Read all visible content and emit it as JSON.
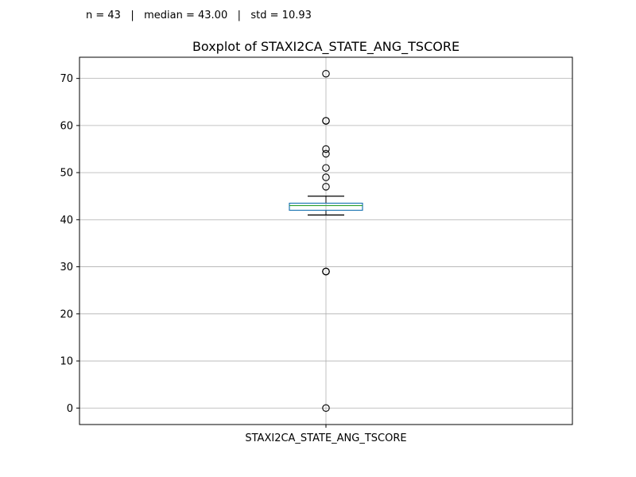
{
  "stats_line": "n = 43   |   median = 43.00   |   std = 10.93",
  "chart_data": {
    "type": "box",
    "title": "Boxplot of STAXI2CA_STATE_ANG_TSCORE",
    "xlabel": "",
    "ylabel": "",
    "categories": [
      "STAXI2CA_STATE_ANG_TSCORE"
    ],
    "ylim": [
      -3.5,
      74.5
    ],
    "yticks": [
      0,
      10,
      20,
      30,
      40,
      50,
      60,
      70
    ],
    "grid": true,
    "legend": "none",
    "box": {
      "q1": 42,
      "median": 43,
      "q3": 43.5,
      "whisker_low": 41,
      "whisker_high": 45,
      "outliers": [
        71,
        61,
        61,
        55,
        54,
        51,
        49,
        47,
        29,
        29,
        29,
        0
      ]
    },
    "colors": {
      "box": "#1f77b4",
      "median": "#2ca02c",
      "whisker": "#000000",
      "outlier": "#000000",
      "grid": "#b0b0b0"
    }
  }
}
